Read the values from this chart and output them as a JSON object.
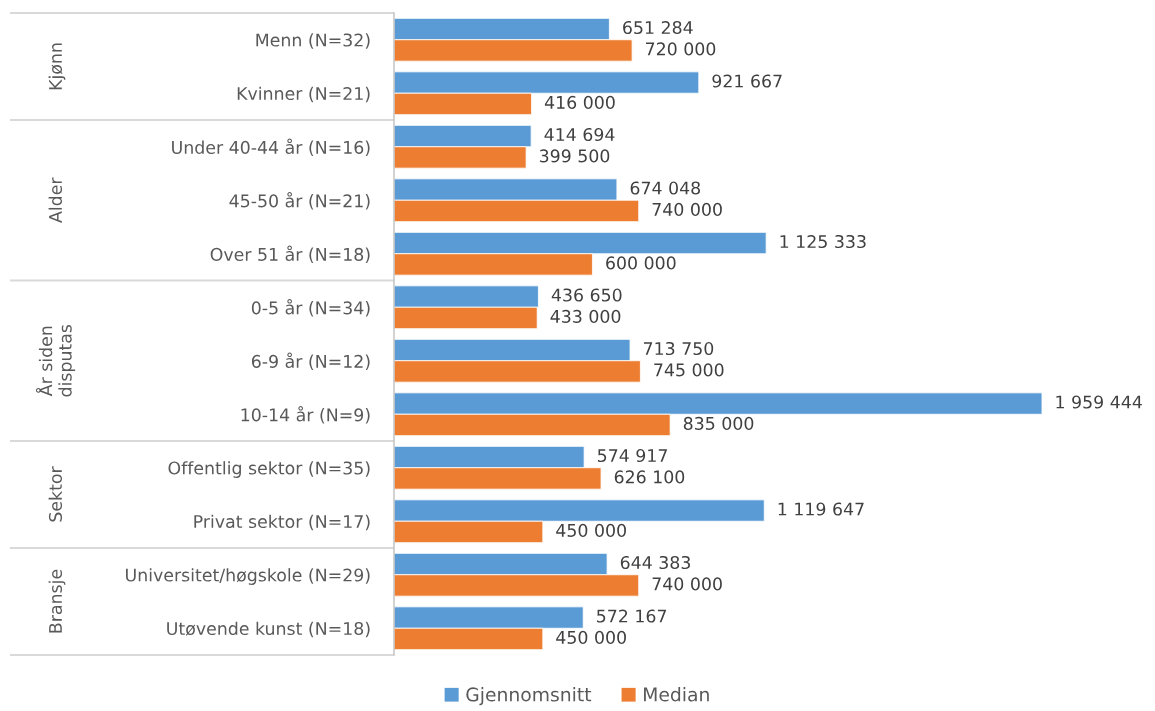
{
  "chart_data": {
    "type": "bar",
    "orientation": "horizontal",
    "tick_labels": "y",
    "legend": "bottom",
    "categories": [
      "Menn (N=32)",
      "Kvinner (N=21)",
      "Under 40-44 år (N=16)",
      "45-50 år (N=21)",
      "Over 51 år (N=18)",
      "0-5 år (N=34)",
      "6-9 år (N=12)",
      "10-14 år (N=9)",
      "Offentlig sektor (N=35)",
      "Privat sektor (N=17)",
      "Universitet/høgskole (N=29)",
      "Utøvende kunst (N=18)"
    ],
    "series": [
      {
        "name": "Gjennomsnitt",
        "color": "#5b9bd5",
        "values": [
          651284,
          921667,
          414694,
          674048,
          1125333,
          436650,
          713750,
          1959444,
          574917,
          1119647,
          644383,
          572167
        ],
        "value_labels": [
          "651 284",
          "921 667",
          "414 694",
          "674 048",
          "1 125 333",
          "436 650",
          "713 750",
          "1 959 444",
          "574 917",
          "1 119 647",
          "644 383",
          "572 167"
        ]
      },
      {
        "name": "Median",
        "color": "#ed7d31",
        "values": [
          720000,
          416000,
          399500,
          740000,
          600000,
          433000,
          745000,
          835000,
          626100,
          450000,
          740000,
          450000
        ],
        "value_labels": [
          "720 000",
          "416 000",
          "399 500",
          "740 000",
          "600 000",
          "433 000",
          "745 000",
          "835 000",
          "626 100",
          "450 000",
          "740 000",
          "450 000"
        ]
      }
    ],
    "annotations": [
      "Kjønn",
      "Alder",
      "År siden\ndisputas",
      "Sektor",
      "Bransje"
    ]
  }
}
